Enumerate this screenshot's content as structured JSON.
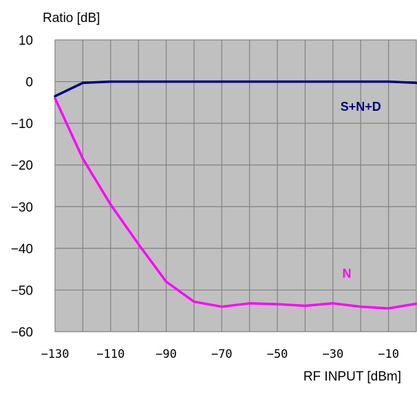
{
  "chart_data": {
    "type": "line",
    "title": "",
    "ylabel": "Ratio [dB]",
    "xlabel": "RF INPUT [dBm]",
    "xlim": [
      -130,
      0
    ],
    "ylim": [
      -60,
      10
    ],
    "xticks": [
      -130,
      -110,
      -90,
      -70,
      -50,
      -30,
      -10
    ],
    "xtick_labels": [
      "−130",
      "−110",
      "−90",
      "−70",
      "−50",
      "−30",
      "−10"
    ],
    "yticks": [
      10,
      0,
      -10,
      -20,
      -30,
      -40,
      -50,
      -60
    ],
    "ytick_labels": [
      "10",
      "0",
      "−10",
      "−20",
      "−30",
      "−40",
      "−50",
      "−60"
    ],
    "grid": true,
    "grid_x_step": 10,
    "grid_y_step": 10,
    "plot_background": "#c0c0c0",
    "grid_color": "#808080",
    "series": [
      {
        "name": "S+N+D",
        "color": "#000080",
        "label_at": [
          -20,
          -7
        ],
        "x": [
          -130,
          -120,
          -110,
          -100,
          -90,
          -80,
          -70,
          -60,
          -50,
          -40,
          -30,
          -20,
          -10,
          0
        ],
        "y": [
          -3.5,
          -0.3,
          0,
          0,
          0,
          0,
          0,
          0,
          0,
          0,
          0,
          0,
          0,
          -0.3
        ]
      },
      {
        "name": "N",
        "color": "#ff00ff",
        "label_at": [
          -25,
          -47
        ],
        "x": [
          -130,
          -120,
          -110,
          -100,
          -90,
          -80,
          -70,
          -60,
          -50,
          -40,
          -30,
          -20,
          -10,
          0
        ],
        "y": [
          -4,
          -18.5,
          -29.5,
          -39,
          -48,
          -52.8,
          -54,
          -53.2,
          -53.4,
          -53.8,
          -53.2,
          -54,
          -54.4,
          -53.3
        ]
      }
    ]
  }
}
